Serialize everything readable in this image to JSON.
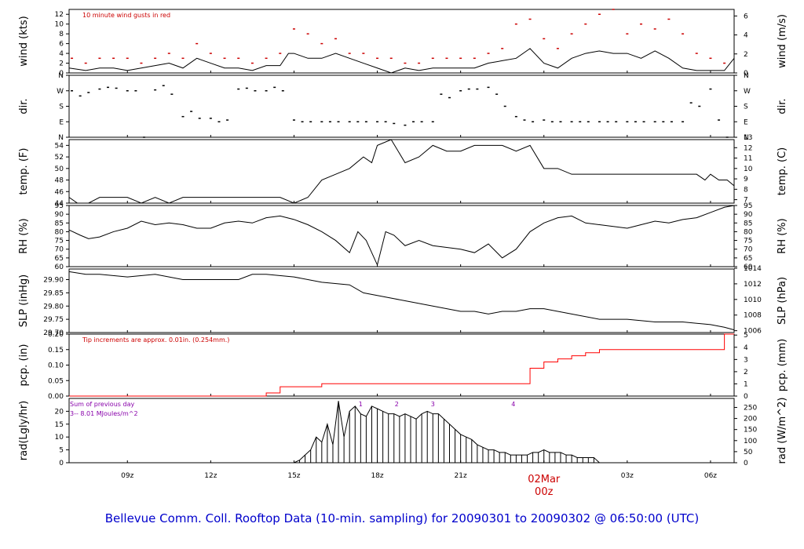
{
  "caption": "Bellevue Comm. Coll. Rooftop Data (10-min. sampling) for 20090301  to  20090302 @ 06:50:00  (UTC)",
  "time_axis": {
    "ticks": [
      {
        "label": "09z",
        "hour": 9
      },
      {
        "label": "12z",
        "hour": 12
      },
      {
        "label": "15z",
        "hour": 15
      },
      {
        "label": "18z",
        "hour": 18
      },
      {
        "label": "21z",
        "hour": 21
      },
      {
        "label": "03z",
        "hour": 27
      },
      {
        "label": "06z",
        "hour": 30
      }
    ],
    "date_marker": {
      "date": "02Mar",
      "time": "00z",
      "hour": 24
    },
    "start_hour": 6.9,
    "end_hour": 30.85
  },
  "annotations": {
    "wind_gust_note": "10  minute wind gusts in red",
    "pcp_note": "Tip increments are approx. 0.01in. (0.254mm.)",
    "rad_sum_title": "Sum of previous day",
    "rad_sum_value": "3-- 8.01  MJoules/m^2",
    "rad_markers": [
      "1",
      "2",
      "3",
      "4"
    ]
  },
  "colors": {
    "main": "#000000",
    "gust": "#cc0000",
    "pcp": "#ff0000",
    "note_red": "#cc0000",
    "note_purple": "#8800aa",
    "caption": "#0000cc"
  },
  "chart_data": [
    {
      "id": "wind",
      "type": "line",
      "ylabel_left": "wind (kts)",
      "ylabel_right": "wind (m/s)",
      "ylim": [
        0,
        13
      ],
      "yticks_left": [
        0,
        2,
        4,
        6,
        8,
        10,
        12
      ],
      "yticks_right": [
        {
          "label": "0",
          "value": 0
        },
        {
          "label": "2",
          "value": 3.89
        },
        {
          "label": "4",
          "value": 7.78
        },
        {
          "label": "6",
          "value": 11.66
        }
      ],
      "series": [
        {
          "kind": "line",
          "color": "#000000",
          "x": [
            6.9,
            7.5,
            8,
            8.5,
            9,
            9.5,
            10,
            10.5,
            11,
            11.5,
            12,
            12.5,
            13,
            13.5,
            14,
            14.5,
            14.8,
            15,
            15.5,
            16,
            16.5,
            17,
            17.5,
            18,
            18.5,
            19,
            19.5,
            20,
            20.5,
            21,
            21.5,
            22,
            22.5,
            23,
            23.5,
            24,
            24.5,
            25,
            25.5,
            26,
            26.5,
            27,
            27.5,
            28,
            28.5,
            29,
            29.5,
            30,
            30.5,
            30.85
          ],
          "y": [
            1,
            0.5,
            1,
            1,
            0.5,
            1,
            1.5,
            2,
            1,
            3,
            2,
            1,
            1,
            0.5,
            1.5,
            1.5,
            4,
            4,
            3,
            3,
            4,
            3,
            2,
            1,
            0,
            1,
            0.5,
            1,
            1,
            1,
            1,
            2,
            2.5,
            3,
            5,
            2,
            1,
            3,
            4,
            4.5,
            4,
            4,
            3,
            4.5,
            3,
            1,
            0.5,
            0.5,
            0.5,
            3
          ]
        },
        {
          "kind": "points",
          "color": "#cc0000",
          "x": [
            7,
            7.5,
            8,
            8.5,
            9,
            9.5,
            10,
            10.5,
            11,
            11.5,
            12,
            12.5,
            13,
            13.5,
            14,
            14.5,
            15,
            15.5,
            16,
            16.5,
            17,
            17.5,
            18,
            18.5,
            19,
            19.5,
            20,
            20.5,
            21,
            21.5,
            22,
            22.5,
            23,
            23.5,
            24,
            24.5,
            25,
            25.5,
            26,
            26.5,
            27,
            27.5,
            28,
            28.5,
            29,
            29.5,
            30,
            30.5
          ],
          "y": [
            3,
            2,
            3,
            3,
            3,
            2,
            3,
            4,
            3,
            6,
            4,
            3,
            3,
            2,
            3,
            4,
            9,
            8,
            6,
            7,
            4,
            4,
            3,
            3,
            2,
            2,
            3,
            3,
            3,
            3,
            4,
            5,
            10,
            11,
            7,
            5,
            8,
            10,
            12,
            13,
            8,
            10,
            9,
            11,
            8,
            4,
            3,
            2
          ]
        }
      ]
    },
    {
      "id": "dir",
      "type": "scatter",
      "ylabel_left": "dir.",
      "ylabel_right": "dir.",
      "yticks_left": [
        "N",
        "E",
        "S",
        "W",
        "N"
      ],
      "yticks_right": [
        "N",
        "E",
        "S",
        "W",
        "N"
      ],
      "ylim": [
        0,
        360
      ],
      "series": [
        {
          "kind": "points",
          "color": "#000000",
          "x": [
            7,
            7.3,
            7.6,
            8,
            8.3,
            8.6,
            9,
            9.3,
            9.6,
            10,
            10.3,
            10.6,
            11,
            11.3,
            11.6,
            12,
            12.3,
            12.6,
            13,
            13.3,
            13.6,
            14,
            14.3,
            14.6,
            15,
            15.3,
            15.6,
            16,
            16.3,
            16.6,
            17,
            17.3,
            17.6,
            18,
            18.3,
            18.6,
            19,
            19.3,
            19.6,
            20,
            20.3,
            20.6,
            21,
            21.3,
            21.6,
            22,
            22.3,
            22.6,
            23,
            23.3,
            23.6,
            24,
            24.3,
            24.6,
            25,
            25.3,
            25.6,
            26,
            26.3,
            26.6,
            27,
            27.3,
            27.6,
            28,
            28.3,
            28.6,
            29,
            29.3,
            29.6,
            30,
            30.3,
            30.6
          ],
          "y": [
            270,
            240,
            260,
            280,
            290,
            285,
            270,
            270,
            0,
            275,
            300,
            250,
            120,
            150,
            110,
            110,
            90,
            100,
            280,
            285,
            270,
            270,
            290,
            270,
            100,
            90,
            90,
            90,
            90,
            90,
            90,
            90,
            90,
            90,
            90,
            80,
            70,
            90,
            90,
            90,
            250,
            230,
            270,
            280,
            280,
            290,
            250,
            180,
            120,
            100,
            90,
            100,
            90,
            90,
            90,
            90,
            90,
            90,
            90,
            90,
            90,
            90,
            90,
            90,
            90,
            90,
            90,
            200,
            180,
            280,
            100,
            0
          ]
        }
      ]
    },
    {
      "id": "temp",
      "type": "line",
      "ylabel_left": "temp. (F)",
      "ylabel_right": "temp. (C)",
      "ylim": [
        44,
        55
      ],
      "yticks_left": [
        44,
        46,
        48,
        50,
        52,
        54
      ],
      "yticks_right": [
        {
          "label": "7",
          "value": 44.6
        },
        {
          "label": "8",
          "value": 46.4
        },
        {
          "label": "9",
          "value": 48.2
        },
        {
          "label": "10",
          "value": 50
        },
        {
          "label": "11",
          "value": 51.8
        },
        {
          "label": "12",
          "value": 53.6
        },
        {
          "label": "13",
          "value": 55.4
        }
      ],
      "series": [
        {
          "kind": "line",
          "color": "#000000",
          "x": [
            6.9,
            7.2,
            7.6,
            8,
            9,
            9.5,
            10,
            10.5,
            11,
            12,
            13,
            13.5,
            14,
            14.5,
            15,
            15.5,
            16,
            16.5,
            17,
            17.5,
            17.8,
            18,
            18.5,
            19,
            19.5,
            20,
            20.5,
            21,
            21.5,
            22,
            22.5,
            23,
            23.5,
            24,
            24.5,
            25,
            26,
            27,
            28,
            29,
            29.5,
            29.8,
            30,
            30.3,
            30.6,
            30.85
          ],
          "y": [
            45,
            44,
            44,
            45,
            45,
            44,
            45,
            44,
            45,
            45,
            45,
            45,
            45,
            45,
            44,
            45,
            48,
            49,
            50,
            52,
            51,
            54,
            55,
            51,
            52,
            54,
            53,
            53,
            54,
            54,
            54,
            53,
            54,
            50,
            50,
            49,
            49,
            49,
            49,
            49,
            49,
            48,
            49,
            48,
            48,
            47
          ]
        }
      ]
    },
    {
      "id": "rh",
      "type": "line",
      "ylabel_left": "RH (%)",
      "ylabel_right": "RH (%)",
      "ylim": [
        60,
        95
      ],
      "yticks_left": [
        60,
        65,
        70,
        75,
        80,
        85,
        90,
        95
      ],
      "yticks_right": [
        60,
        65,
        70,
        75,
        80,
        85,
        90,
        95
      ],
      "series": [
        {
          "kind": "line",
          "color": "#000000",
          "x": [
            6.9,
            7.3,
            7.6,
            8,
            8.5,
            9,
            9.5,
            10,
            10.5,
            11,
            11.5,
            12,
            12.5,
            13,
            13.5,
            14,
            14.5,
            15,
            15.5,
            16,
            16.5,
            17,
            17.3,
            17.6,
            18,
            18.3,
            18.6,
            19,
            19.5,
            20,
            20.5,
            21,
            21.5,
            22,
            22.5,
            23,
            23.5,
            24,
            24.5,
            25,
            25.5,
            26,
            26.5,
            27,
            27.5,
            28,
            28.5,
            29,
            29.5,
            30,
            30.5,
            30.85
          ],
          "y": [
            81,
            78,
            76,
            77,
            80,
            82,
            86,
            84,
            85,
            84,
            82,
            82,
            85,
            86,
            85,
            88,
            89,
            87,
            84,
            80,
            75,
            68,
            80,
            75,
            61,
            80,
            78,
            72,
            75,
            72,
            71,
            70,
            68,
            73,
            65,
            70,
            80,
            85,
            88,
            89,
            85,
            84,
            83,
            82,
            84,
            86,
            85,
            87,
            88,
            91,
            94,
            95
          ]
        }
      ]
    },
    {
      "id": "slp",
      "type": "line",
      "ylabel_left": "SLP (inHg)",
      "ylabel_right": "SLP (hPa)",
      "ylim": [
        29.7,
        29.94
      ],
      "yticks_left": [
        {
          "label": "29.70",
          "value": 29.7
        },
        {
          "label": "29.75",
          "value": 29.75
        },
        {
          "label": "29.80",
          "value": 29.8
        },
        {
          "label": "29.85",
          "value": 29.85
        },
        {
          "label": "29.90",
          "value": 29.9
        }
      ],
      "yticks_right": [
        {
          "label": "1006",
          "value": 29.707
        },
        {
          "label": "1008",
          "value": 29.766
        },
        {
          "label": "1010",
          "value": 29.825
        },
        {
          "label": "1012",
          "value": 29.884
        },
        {
          "label": "1014",
          "value": 29.943
        }
      ],
      "series": [
        {
          "kind": "line",
          "color": "#000000",
          "x": [
            6.9,
            7.5,
            8,
            9,
            10,
            11,
            12,
            13,
            13.5,
            14,
            15,
            16,
            17,
            17.5,
            18,
            19,
            20,
            21,
            21.5,
            22,
            22.5,
            23,
            23.5,
            24,
            25,
            26,
            27,
            28,
            29,
            30,
            30.5,
            30.85
          ],
          "y": [
            29.93,
            29.92,
            29.92,
            29.91,
            29.92,
            29.9,
            29.9,
            29.9,
            29.92,
            29.92,
            29.91,
            29.89,
            29.88,
            29.85,
            29.84,
            29.82,
            29.8,
            29.78,
            29.78,
            29.77,
            29.78,
            29.78,
            29.79,
            29.79,
            29.77,
            29.75,
            29.75,
            29.74,
            29.74,
            29.73,
            29.72,
            29.71
          ]
        }
      ]
    },
    {
      "id": "pcp",
      "type": "line",
      "ylabel_left": "pcp. (in)",
      "ylabel_right": "pcp. (mm)",
      "ylim": [
        0,
        0.2
      ],
      "yticks_left": [
        {
          "label": "0.00",
          "value": 0
        },
        {
          "label": "0.05",
          "value": 0.05
        },
        {
          "label": "0.10",
          "value": 0.1
        },
        {
          "label": "0.15",
          "value": 0.15
        },
        {
          "label": "0.20",
          "value": 0.2
        }
      ],
      "yticks_right": [
        {
          "label": "0",
          "value": 0
        },
        {
          "label": "1",
          "value": 0.0394
        },
        {
          "label": "2",
          "value": 0.0787
        },
        {
          "label": "3",
          "value": 0.1181
        },
        {
          "label": "4",
          "value": 0.1575
        },
        {
          "label": "5",
          "value": 0.1969
        }
      ],
      "series": [
        {
          "kind": "step",
          "color": "#ff0000",
          "x": [
            6.9,
            13.5,
            14,
            14.5,
            15,
            16,
            23,
            23.5,
            24,
            24.5,
            25,
            25.5,
            26,
            30,
            30.5,
            30.85
          ],
          "y": [
            0,
            0,
            0.01,
            0.03,
            0.03,
            0.04,
            0.04,
            0.09,
            0.11,
            0.12,
            0.13,
            0.14,
            0.15,
            0.15,
            0.2,
            0.2
          ]
        }
      ]
    },
    {
      "id": "rad",
      "type": "bar",
      "ylabel_left": "rad(Lgly/hr)",
      "ylabel_right": "rad (W/m^2)",
      "ylim": [
        0,
        25
      ],
      "yticks_left": [
        0,
        5,
        10,
        15,
        20
      ],
      "yticks_right": [
        {
          "label": "0",
          "value": 0
        },
        {
          "label": "50",
          "value": 4.3
        },
        {
          "label": "100",
          "value": 8.6
        },
        {
          "label": "150",
          "value": 12.9
        },
        {
          "label": "200",
          "value": 17.2
        },
        {
          "label": "250",
          "value": 21.5
        }
      ],
      "markers": [
        {
          "label": "1",
          "hour": 17.4
        },
        {
          "label": "2",
          "hour": 18.7
        },
        {
          "label": "3",
          "hour": 20
        },
        {
          "label": "4",
          "hour": 22.9
        }
      ],
      "series": [
        {
          "kind": "bars",
          "color": "#000000",
          "x": [
            15,
            15.2,
            15.4,
            15.6,
            15.8,
            16,
            16.2,
            16.4,
            16.6,
            16.8,
            17,
            17.2,
            17.4,
            17.6,
            17.8,
            18,
            18.2,
            18.4,
            18.6,
            18.8,
            19,
            19.2,
            19.4,
            19.6,
            19.8,
            20,
            20.2,
            20.4,
            20.6,
            20.8,
            21,
            21.2,
            21.4,
            21.6,
            21.8,
            22,
            22.2,
            22.4,
            22.6,
            22.8,
            23,
            23.2,
            23.4,
            23.6,
            23.8,
            24,
            24.2,
            24.4,
            24.6,
            24.8,
            25,
            25.2,
            25.4,
            25.6,
            25.8,
            26
          ],
          "y": [
            0,
            1,
            3,
            5,
            10,
            8,
            15,
            7,
            24,
            10,
            20,
            22,
            19,
            18,
            22,
            21,
            20,
            19,
            19,
            18,
            19,
            18,
            17,
            19,
            20,
            19,
            19,
            17,
            15,
            13,
            11,
            10,
            9,
            7,
            6,
            5,
            5,
            4,
            4,
            3,
            3,
            3,
            3,
            4,
            4,
            5,
            4,
            4,
            4,
            3,
            3,
            2,
            2,
            2,
            2,
            0
          ]
        }
      ]
    }
  ]
}
